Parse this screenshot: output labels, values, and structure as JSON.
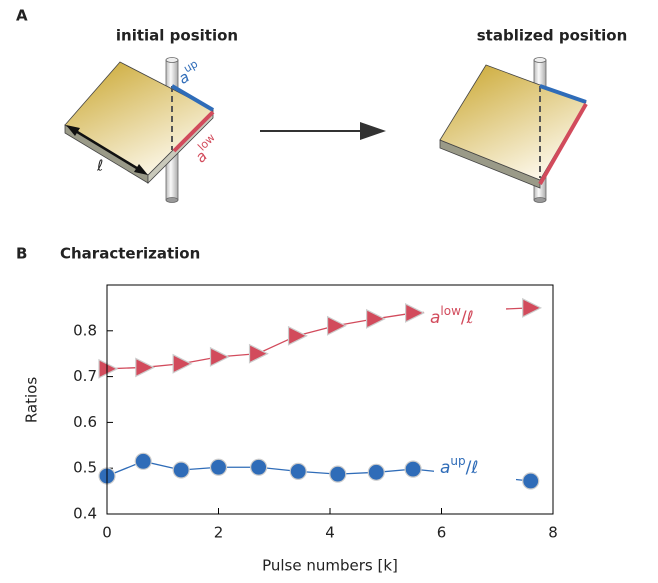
{
  "panel_a": {
    "label": "A",
    "left_title": "initial position",
    "right_title": "stablized position",
    "upper_edge": {
      "base": "a",
      "sup": "up"
    },
    "lower_edge": {
      "base": "a",
      "sup": "low"
    },
    "length": "ℓ"
  },
  "chart_data": {
    "type": "line",
    "panel_label": "B",
    "title": "Characterization",
    "x_label": "Pulse numbers [k]",
    "y_label": "Ratios",
    "xlim": [
      0,
      8
    ],
    "xticks": [
      0,
      2,
      4,
      6,
      8
    ],
    "ylim": [
      0.4,
      0.9
    ],
    "yticks": [
      0.4,
      0.5,
      0.6,
      0.7,
      0.8
    ],
    "series": [
      {
        "name": {
          "base": "a",
          "sup": "low",
          "suffix": "/ℓ"
        },
        "color": "#d24b5c",
        "marker": "triangle",
        "x": [
          0,
          0.66,
          1.33,
          2.0,
          2.7,
          3.4,
          4.1,
          4.8,
          5.5,
          7.6
        ],
        "values": [
          0.717,
          0.72,
          0.728,
          0.743,
          0.75,
          0.789,
          0.811,
          0.826,
          0.839,
          0.85
        ]
      },
      {
        "name": {
          "base": "a",
          "sup": "up",
          "suffix": "/ℓ"
        },
        "color": "#2f6cb8",
        "marker": "circle",
        "x": [
          0,
          0.65,
          1.33,
          2.0,
          2.72,
          3.43,
          4.14,
          4.83,
          5.49,
          7.6
        ],
        "values": [
          0.483,
          0.515,
          0.496,
          0.502,
          0.502,
          0.493,
          0.487,
          0.491,
          0.498,
          0.472
        ]
      }
    ]
  }
}
